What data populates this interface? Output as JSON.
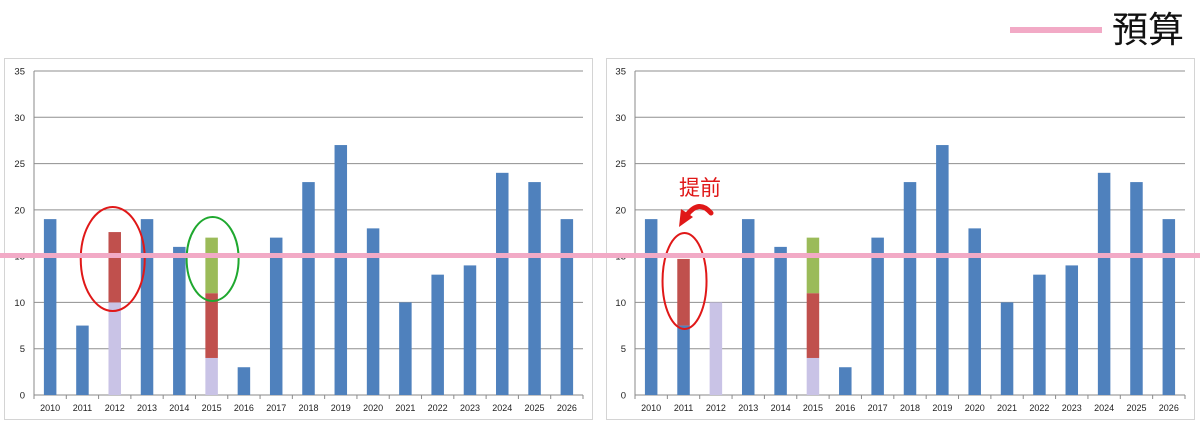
{
  "legend": {
    "label": "預算",
    "color": "#f2aac6"
  },
  "chart_data": [
    {
      "type": "bar",
      "categories": [
        "2010",
        "2011",
        "2012",
        "2013",
        "2014",
        "2015",
        "2016",
        "2017",
        "2018",
        "2019",
        "2020",
        "2021",
        "2022",
        "2023",
        "2024",
        "2025",
        "2026"
      ],
      "series": [
        {
          "values": [
            19,
            7.5,
            0,
            19,
            16,
            0,
            3,
            17,
            23,
            27,
            18,
            10,
            13,
            14,
            24,
            23,
            19
          ],
          "color": "#4f81bd"
        },
        {
          "values": [
            0,
            0,
            10,
            0,
            0,
            4,
            0,
            0,
            0,
            0,
            0,
            0,
            0,
            0,
            0,
            0,
            0
          ],
          "color": "#c9c3e6"
        },
        {
          "values": [
            0,
            0,
            7.6,
            0,
            0,
            7,
            0,
            0,
            0,
            0,
            0,
            0,
            0,
            0,
            0,
            0,
            0
          ],
          "color": "#c0504d"
        },
        {
          "values": [
            0,
            0,
            0,
            0,
            0,
            6,
            0,
            0,
            0,
            0,
            0,
            0,
            0,
            0,
            0,
            0,
            0
          ],
          "color": "#9bbb59"
        }
      ],
      "yticks": [
        0,
        5,
        10,
        15,
        20,
        25,
        30,
        35
      ],
      "ylim": [
        0,
        35
      ],
      "grid": true,
      "budget": 15,
      "annotations": [
        {
          "type": "ellipse",
          "category": "2012",
          "color": "#e01818"
        },
        {
          "type": "ellipse",
          "category": "2015",
          "color": "#1fa82f"
        }
      ]
    },
    {
      "type": "bar",
      "categories": [
        "2010",
        "2011",
        "2012",
        "2013",
        "2014",
        "2015",
        "2016",
        "2017",
        "2018",
        "2019",
        "2020",
        "2021",
        "2022",
        "2023",
        "2024",
        "2025",
        "2026"
      ],
      "series": [
        {
          "values": [
            19,
            7.5,
            0,
            19,
            16,
            0,
            3,
            17,
            23,
            27,
            18,
            10,
            13,
            14,
            24,
            23,
            19
          ],
          "color": "#4f81bd"
        },
        {
          "values": [
            0,
            0,
            10,
            0,
            0,
            4,
            0,
            0,
            0,
            0,
            0,
            0,
            0,
            0,
            0,
            0,
            0
          ],
          "color": "#c9c3e6"
        },
        {
          "values": [
            0,
            7.2,
            0,
            0,
            0,
            7,
            0,
            0,
            0,
            0,
            0,
            0,
            0,
            0,
            0,
            0,
            0
          ],
          "color": "#c0504d"
        },
        {
          "values": [
            0,
            0,
            0,
            0,
            0,
            6,
            0,
            0,
            0,
            0,
            0,
            0,
            0,
            0,
            0,
            0,
            0
          ],
          "color": "#9bbb59"
        }
      ],
      "yticks": [
        0,
        5,
        10,
        15,
        20,
        25,
        30,
        35
      ],
      "ylim": [
        0,
        35
      ],
      "grid": true,
      "budget": 15,
      "annotations": [
        {
          "type": "ellipse",
          "category": "2011",
          "color": "#e01818"
        },
        {
          "type": "text",
          "text": "提前",
          "color": "#e01818"
        }
      ]
    }
  ]
}
